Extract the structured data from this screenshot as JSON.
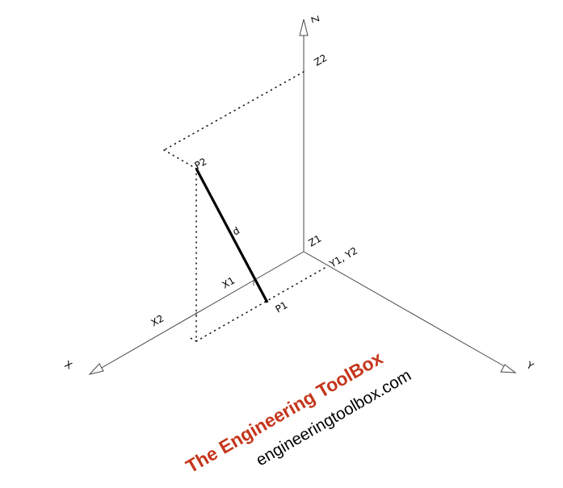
{
  "labels": {
    "x_axis": "X",
    "y_axis": "Y",
    "z_axis": "Z",
    "x1": "X1",
    "x2": "X2",
    "y1_y2": "Y1, Y2",
    "z1": "Z1",
    "z2": "Z2",
    "p1": "P1",
    "p2": "P2",
    "distance": "d"
  },
  "watermark": {
    "brand": "The Engineering ToolBox",
    "url": "engineeringtoolbox.com",
    "brand_color": "#c5361c"
  }
}
